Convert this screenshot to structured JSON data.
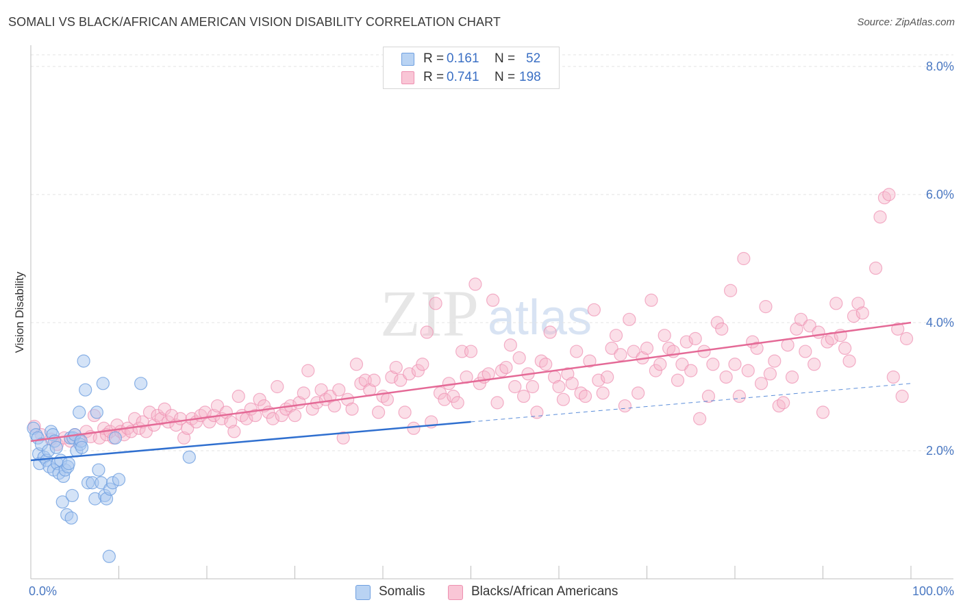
{
  "header": {
    "title": "SOMALI VS BLACK/AFRICAN AMERICAN VISION DISABILITY CORRELATION CHART",
    "source": "Source: ZipAtlas.com"
  },
  "watermark": {
    "text_zip": "ZIP",
    "text_atlas": "atlas"
  },
  "legend_top": {
    "r_label": "R =",
    "n_label": "N =",
    "rows": [
      {
        "r": "0.161",
        "n": "52"
      },
      {
        "r": "0.741",
        "n": "198"
      }
    ]
  },
  "legend_bottom": {
    "items": [
      "Somalis",
      "Blacks/African Americans"
    ]
  },
  "chart_data": {
    "type": "scatter",
    "title": "SOMALI VS BLACK/AFRICAN AMERICAN VISION DISABILITY CORRELATION CHART",
    "xlabel": "",
    "ylabel": "Vision Disability",
    "xlim": [
      0,
      100
    ],
    "ylim": [
      0,
      8.5
    ],
    "x_tick_labels": [
      "0.0%",
      "100.0%"
    ],
    "y_ticks": [
      2,
      4,
      6,
      8
    ],
    "y_tick_labels": [
      "2.0%",
      "4.0%",
      "6.0%",
      "8.0%"
    ],
    "grid": true,
    "legend_position": "top-center",
    "colors": {
      "somalis_fill": "#aac8f0",
      "somalis_stroke": "#6e9fe0",
      "somalis_line": "#2f6fcf",
      "black_fill": "#f7b8cc",
      "black_stroke": "#ee8fb0",
      "black_line": "#e46996"
    },
    "series": [
      {
        "name": "Somalis",
        "r": 0.161,
        "n": 52,
        "trend": {
          "x": [
            0,
            50
          ],
          "y": [
            1.85,
            2.45
          ]
        },
        "trend_dashed": {
          "x": [
            50,
            100
          ],
          "y": [
            2.45,
            3.05
          ]
        },
        "points": [
          [
            0.3,
            2.35
          ],
          [
            0.6,
            2.25
          ],
          [
            0.8,
            2.2
          ],
          [
            0.9,
            1.95
          ],
          [
            1.0,
            1.8
          ],
          [
            1.2,
            2.1
          ],
          [
            1.5,
            1.9
          ],
          [
            1.8,
            1.85
          ],
          [
            2.0,
            2.0
          ],
          [
            2.1,
            1.75
          ],
          [
            2.3,
            2.3
          ],
          [
            2.5,
            2.25
          ],
          [
            2.6,
            1.7
          ],
          [
            2.7,
            2.15
          ],
          [
            2.9,
            2.05
          ],
          [
            3.0,
            1.8
          ],
          [
            3.2,
            1.65
          ],
          [
            3.4,
            1.85
          ],
          [
            3.6,
            1.2
          ],
          [
            3.7,
            1.6
          ],
          [
            3.9,
            1.7
          ],
          [
            4.1,
            1.0
          ],
          [
            4.2,
            1.75
          ],
          [
            4.3,
            1.8
          ],
          [
            4.5,
            2.2
          ],
          [
            4.6,
            0.95
          ],
          [
            4.7,
            1.3
          ],
          [
            4.8,
            2.2
          ],
          [
            5.0,
            2.25
          ],
          [
            5.2,
            2.0
          ],
          [
            5.5,
            2.6
          ],
          [
            5.6,
            2.1
          ],
          [
            5.7,
            2.15
          ],
          [
            5.8,
            2.05
          ],
          [
            6.0,
            3.4
          ],
          [
            6.2,
            2.95
          ],
          [
            6.5,
            1.5
          ],
          [
            7.0,
            1.5
          ],
          [
            7.3,
            1.25
          ],
          [
            7.5,
            2.6
          ],
          [
            7.7,
            1.7
          ],
          [
            8.0,
            1.5
          ],
          [
            8.2,
            3.05
          ],
          [
            8.4,
            1.3
          ],
          [
            8.6,
            1.25
          ],
          [
            8.9,
            0.35
          ],
          [
            9.0,
            1.4
          ],
          [
            9.3,
            1.5
          ],
          [
            9.6,
            2.2
          ],
          [
            10.0,
            1.55
          ],
          [
            12.5,
            3.05
          ],
          [
            18.0,
            1.9
          ]
        ]
      },
      {
        "name": "Blacks/African Americans",
        "r": 0.741,
        "n": 198,
        "trend": {
          "x": [
            0,
            100
          ],
          "y": [
            2.15,
            4.0
          ]
        },
        "points": [
          [
            0.4,
            2.38
          ],
          [
            1.2,
            2.25
          ],
          [
            2.3,
            2.18
          ],
          [
            3.0,
            2.1
          ],
          [
            3.8,
            2.2
          ],
          [
            4.5,
            2.15
          ],
          [
            5.0,
            2.25
          ],
          [
            5.5,
            2.18
          ],
          [
            6.3,
            2.3
          ],
          [
            6.8,
            2.22
          ],
          [
            7.2,
            2.55
          ],
          [
            7.8,
            2.2
          ],
          [
            8.3,
            2.35
          ],
          [
            8.6,
            2.25
          ],
          [
            9.0,
            2.3
          ],
          [
            9.4,
            2.2
          ],
          [
            9.8,
            2.4
          ],
          [
            10.2,
            2.3
          ],
          [
            10.6,
            2.25
          ],
          [
            11.0,
            2.35
          ],
          [
            11.4,
            2.3
          ],
          [
            11.8,
            2.5
          ],
          [
            12.3,
            2.35
          ],
          [
            12.7,
            2.45
          ],
          [
            13.1,
            2.3
          ],
          [
            13.5,
            2.6
          ],
          [
            14.0,
            2.4
          ],
          [
            14.4,
            2.55
          ],
          [
            14.8,
            2.5
          ],
          [
            15.2,
            2.65
          ],
          [
            15.6,
            2.45
          ],
          [
            16.0,
            2.55
          ],
          [
            16.5,
            2.4
          ],
          [
            17.0,
            2.5
          ],
          [
            17.4,
            2.2
          ],
          [
            17.8,
            2.35
          ],
          [
            18.3,
            2.5
          ],
          [
            18.8,
            2.45
          ],
          [
            19.3,
            2.55
          ],
          [
            19.8,
            2.6
          ],
          [
            20.3,
            2.45
          ],
          [
            20.8,
            2.55
          ],
          [
            21.2,
            2.7
          ],
          [
            21.7,
            2.5
          ],
          [
            22.2,
            2.6
          ],
          [
            22.7,
            2.45
          ],
          [
            23.1,
            2.3
          ],
          [
            23.6,
            2.85
          ],
          [
            24.0,
            2.55
          ],
          [
            24.5,
            2.5
          ],
          [
            25.0,
            2.65
          ],
          [
            25.5,
            2.55
          ],
          [
            26.0,
            2.8
          ],
          [
            26.5,
            2.7
          ],
          [
            27.0,
            2.6
          ],
          [
            27.5,
            2.5
          ],
          [
            28.0,
            3.0
          ],
          [
            28.5,
            2.55
          ],
          [
            29.0,
            2.65
          ],
          [
            29.5,
            2.7
          ],
          [
            30.0,
            2.55
          ],
          [
            30.5,
            2.75
          ],
          [
            31.0,
            2.9
          ],
          [
            31.5,
            3.25
          ],
          [
            32.0,
            2.65
          ],
          [
            32.5,
            2.75
          ],
          [
            33.0,
            2.95
          ],
          [
            33.5,
            2.8
          ],
          [
            34.0,
            2.85
          ],
          [
            34.5,
            2.7
          ],
          [
            35.0,
            2.95
          ],
          [
            35.5,
            2.2
          ],
          [
            36.0,
            2.8
          ],
          [
            36.5,
            2.65
          ],
          [
            37.0,
            3.35
          ],
          [
            37.5,
            3.05
          ],
          [
            38.0,
            3.1
          ],
          [
            38.5,
            2.95
          ],
          [
            39.0,
            3.1
          ],
          [
            39.5,
            2.6
          ],
          [
            40.0,
            2.85
          ],
          [
            40.5,
            2.8
          ],
          [
            41.0,
            3.15
          ],
          [
            41.5,
            3.3
          ],
          [
            42.0,
            3.1
          ],
          [
            42.5,
            2.6
          ],
          [
            43.0,
            3.2
          ],
          [
            43.5,
            2.35
          ],
          [
            44.0,
            3.25
          ],
          [
            44.5,
            3.35
          ],
          [
            45.0,
            3.85
          ],
          [
            45.5,
            2.45
          ],
          [
            46.0,
            4.3
          ],
          [
            46.5,
            2.9
          ],
          [
            47.0,
            2.8
          ],
          [
            47.5,
            3.05
          ],
          [
            48.0,
            2.85
          ],
          [
            48.5,
            2.75
          ],
          [
            49.0,
            3.55
          ],
          [
            49.5,
            3.15
          ],
          [
            50.0,
            3.55
          ],
          [
            50.5,
            4.6
          ],
          [
            51.0,
            3.05
          ],
          [
            51.5,
            3.15
          ],
          [
            52.0,
            3.2
          ],
          [
            52.5,
            4.35
          ],
          [
            53.0,
            2.75
          ],
          [
            53.5,
            3.25
          ],
          [
            54.0,
            3.3
          ],
          [
            54.5,
            3.65
          ],
          [
            55.0,
            3.0
          ],
          [
            55.5,
            3.45
          ],
          [
            56.0,
            2.85
          ],
          [
            56.5,
            3.2
          ],
          [
            57.0,
            3.0
          ],
          [
            57.5,
            2.6
          ],
          [
            58.0,
            3.4
          ],
          [
            58.5,
            3.35
          ],
          [
            59.0,
            3.85
          ],
          [
            59.5,
            3.15
          ],
          [
            60.0,
            3.0
          ],
          [
            60.5,
            2.8
          ],
          [
            61.0,
            3.2
          ],
          [
            61.5,
            3.05
          ],
          [
            62.0,
            3.55
          ],
          [
            62.5,
            2.9
          ],
          [
            63.0,
            2.85
          ],
          [
            63.5,
            3.4
          ],
          [
            64.0,
            4.2
          ],
          [
            64.5,
            3.1
          ],
          [
            65.0,
            2.9
          ],
          [
            65.5,
            3.15
          ],
          [
            66.0,
            3.6
          ],
          [
            66.5,
            3.8
          ],
          [
            67.0,
            3.5
          ],
          [
            67.5,
            2.7
          ],
          [
            68.0,
            4.05
          ],
          [
            68.5,
            3.55
          ],
          [
            69.0,
            2.9
          ],
          [
            69.5,
            3.45
          ],
          [
            70.0,
            3.6
          ],
          [
            70.5,
            4.35
          ],
          [
            71.0,
            3.25
          ],
          [
            71.5,
            3.35
          ],
          [
            72.0,
            3.8
          ],
          [
            72.5,
            3.6
          ],
          [
            73.0,
            3.55
          ],
          [
            73.5,
            3.1
          ],
          [
            74.0,
            3.35
          ],
          [
            74.5,
            3.7
          ],
          [
            75.0,
            3.25
          ],
          [
            75.5,
            3.75
          ],
          [
            76.0,
            2.5
          ],
          [
            76.5,
            3.55
          ],
          [
            77.0,
            2.85
          ],
          [
            77.5,
            3.35
          ],
          [
            78.0,
            4.0
          ],
          [
            78.5,
            3.9
          ],
          [
            79.0,
            3.15
          ],
          [
            79.5,
            4.5
          ],
          [
            80.0,
            3.35
          ],
          [
            80.5,
            2.85
          ],
          [
            81.0,
            5.0
          ],
          [
            81.5,
            3.25
          ],
          [
            82.0,
            3.7
          ],
          [
            82.5,
            3.6
          ],
          [
            83.0,
            3.05
          ],
          [
            83.5,
            4.25
          ],
          [
            84.0,
            3.2
          ],
          [
            84.5,
            3.4
          ],
          [
            85.0,
            2.7
          ],
          [
            85.5,
            2.75
          ],
          [
            86.0,
            3.65
          ],
          [
            86.5,
            3.15
          ],
          [
            87.0,
            3.9
          ],
          [
            87.5,
            4.05
          ],
          [
            88.0,
            3.55
          ],
          [
            88.5,
            3.95
          ],
          [
            89.0,
            3.35
          ],
          [
            89.5,
            3.85
          ],
          [
            90.0,
            2.6
          ],
          [
            90.5,
            3.7
          ],
          [
            91.0,
            3.75
          ],
          [
            91.5,
            4.3
          ],
          [
            92.0,
            3.8
          ],
          [
            92.5,
            3.6
          ],
          [
            93.0,
            3.4
          ],
          [
            93.5,
            4.1
          ],
          [
            94.0,
            4.3
          ],
          [
            94.5,
            4.15
          ],
          [
            96.0,
            4.85
          ],
          [
            96.5,
            5.65
          ],
          [
            97.0,
            5.95
          ],
          [
            97.5,
            6.0
          ],
          [
            98.0,
            3.15
          ],
          [
            98.5,
            3.9
          ],
          [
            99.0,
            2.85
          ],
          [
            99.5,
            3.75
          ]
        ]
      }
    ]
  }
}
